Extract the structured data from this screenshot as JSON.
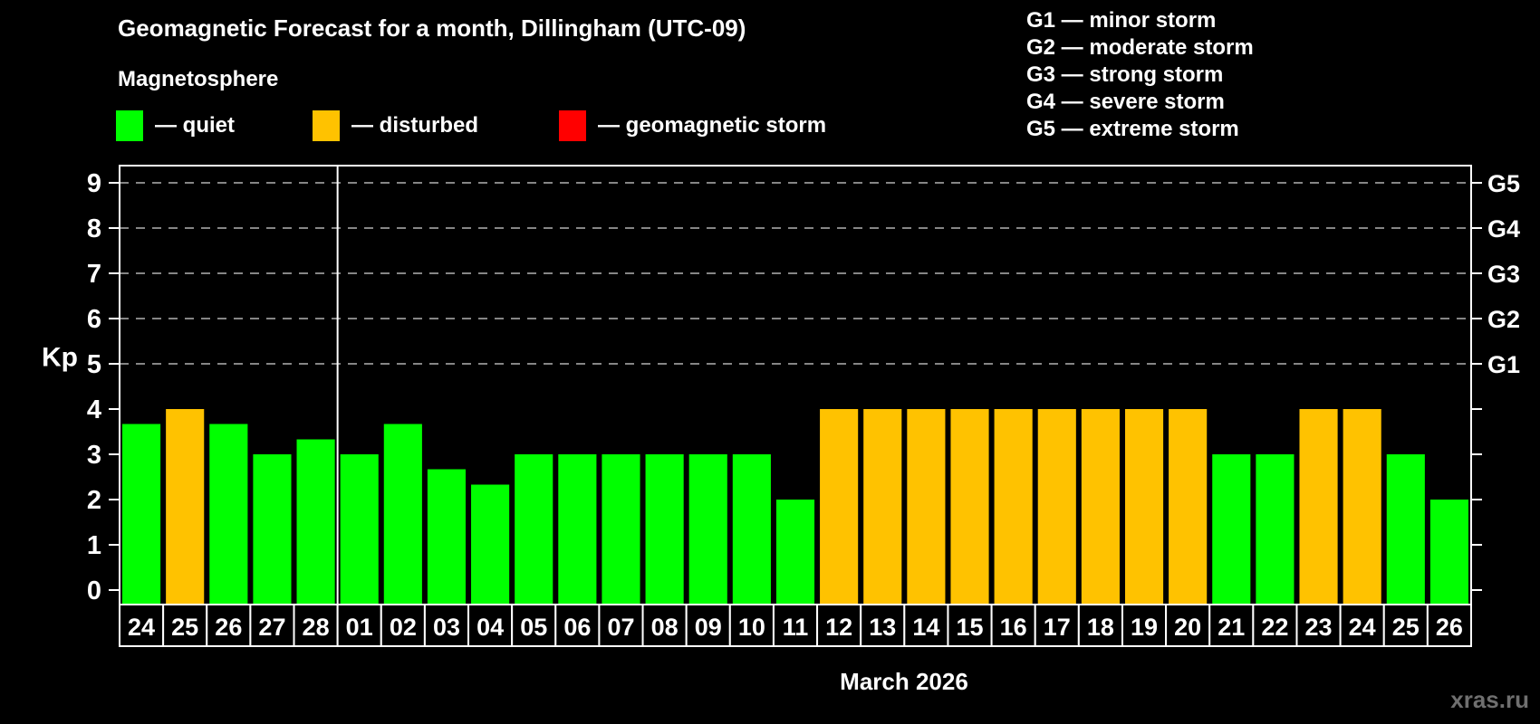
{
  "watermark": "xras.ru",
  "legend": {
    "items": [
      {
        "id": "quiet",
        "label": "— quiet",
        "color": "#00ff00"
      },
      {
        "id": "disturbed",
        "label": "— disturbed",
        "color": "#ffc200"
      },
      {
        "id": "storm",
        "label": "— geomagnetic storm",
        "color": "#ff0000"
      }
    ]
  },
  "g_legend": {
    "items": [
      "G1 — minor storm",
      "G2 — moderate storm",
      "G3 — strong storm",
      "G4 — severe storm",
      "G5 — extreme storm"
    ]
  },
  "chart_data": {
    "type": "bar",
    "title": "Geomagnetic Forecast for a month, Dillingham (UTC-09)",
    "subtitle": "Magnetosphere",
    "xlabel": "March 2026",
    "ylabel": "Kp",
    "ylim": [
      -0.32,
      9.38
    ],
    "yticks": [
      0,
      1,
      2,
      3,
      4,
      5,
      6,
      7,
      8,
      9
    ],
    "gridlines": [
      5,
      6,
      7,
      8,
      9
    ],
    "grid_color": "#b2b2b2",
    "right_axis": {
      "labels": [
        "G1",
        "G2",
        "G3",
        "G4",
        "G5"
      ],
      "positions": [
        5,
        6,
        7,
        8,
        9
      ]
    },
    "categories": [
      "24",
      "25",
      "26",
      "27",
      "28",
      "01",
      "02",
      "03",
      "04",
      "05",
      "06",
      "07",
      "08",
      "09",
      "10",
      "11",
      "12",
      "13",
      "14",
      "15",
      "16",
      "17",
      "18",
      "19",
      "20",
      "21",
      "22",
      "23",
      "24",
      "25",
      "26"
    ],
    "values": [
      3.67,
      4,
      3.67,
      3,
      3.33,
      3,
      3.67,
      2.67,
      2.33,
      3,
      3,
      3,
      3,
      3,
      3,
      2,
      4,
      4,
      4,
      4,
      4,
      4,
      4,
      4,
      4,
      3,
      3,
      4,
      4,
      3,
      2
    ],
    "statuses": [
      "quiet",
      "disturbed",
      "quiet",
      "quiet",
      "quiet",
      "quiet",
      "quiet",
      "quiet",
      "quiet",
      "quiet",
      "quiet",
      "quiet",
      "quiet",
      "quiet",
      "quiet",
      "quiet",
      "disturbed",
      "disturbed",
      "disturbed",
      "disturbed",
      "disturbed",
      "disturbed",
      "disturbed",
      "disturbed",
      "disturbed",
      "quiet",
      "quiet",
      "disturbed",
      "disturbed",
      "quiet",
      "quiet"
    ],
    "status_colors": {
      "quiet": "#00ff00",
      "disturbed": "#ffc200",
      "storm": "#ff0000"
    },
    "month_separator_before_index": 5
  }
}
